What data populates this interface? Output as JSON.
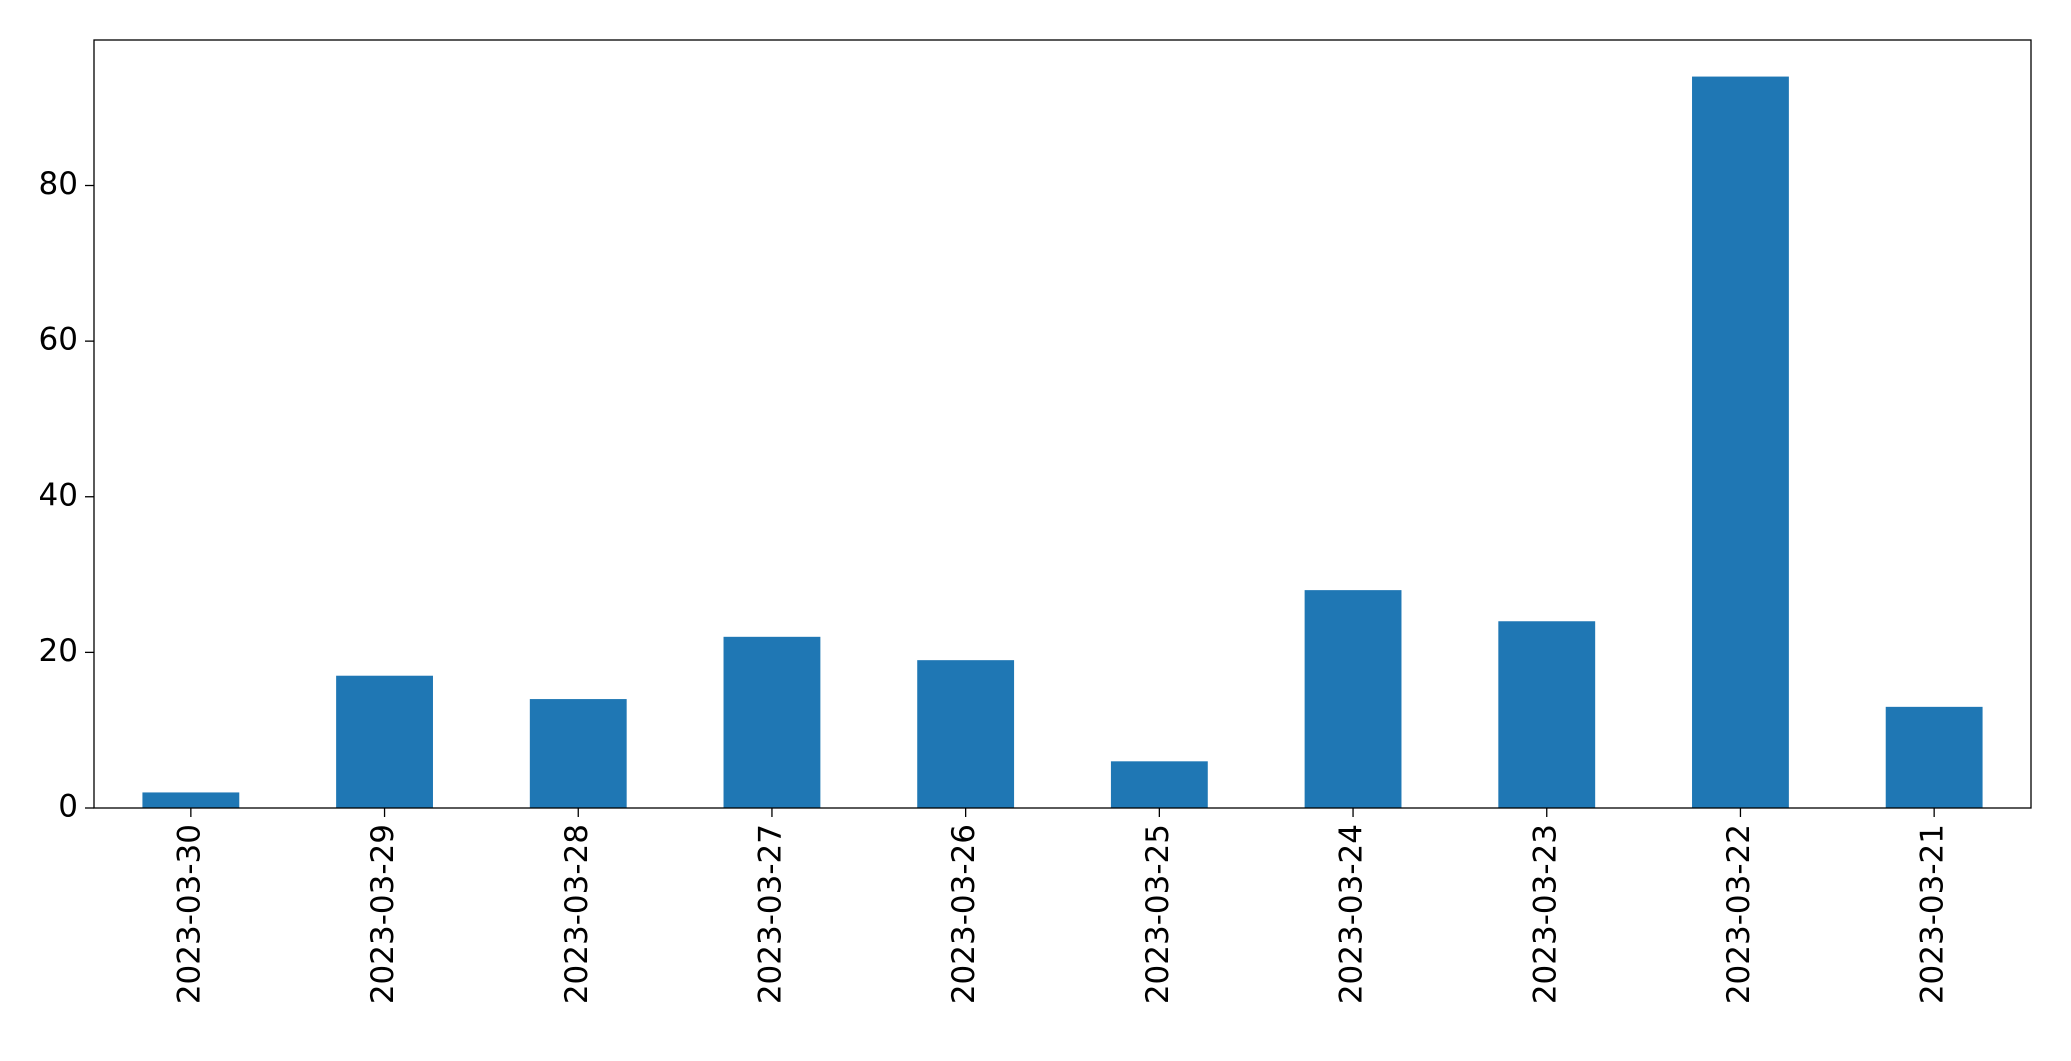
{
  "chart_data": {
    "type": "bar",
    "categories": [
      "2023-03-30",
      "2023-03-29",
      "2023-03-28",
      "2023-03-27",
      "2023-03-26",
      "2023-03-25",
      "2023-03-24",
      "2023-03-23",
      "2023-03-22",
      "2023-03-21"
    ],
    "values": [
      2,
      17,
      14,
      22,
      19,
      6,
      28,
      24,
      94,
      13
    ],
    "color": "#1f77b4",
    "ylim": [
      0,
      98.7
    ],
    "yticks": [
      0,
      20,
      40,
      60,
      80
    ],
    "grid": false
  }
}
